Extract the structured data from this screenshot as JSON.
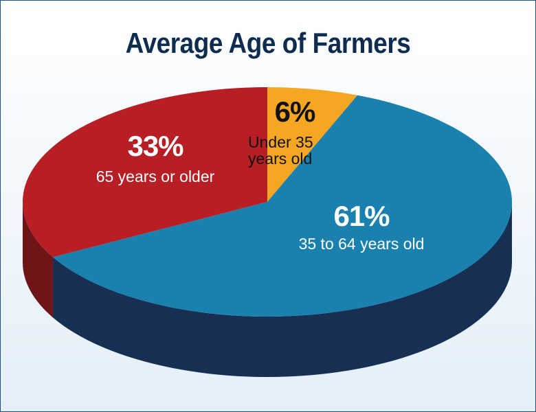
{
  "chart_data": {
    "type": "pie",
    "title": "Average Age of Farmers",
    "categories": [
      "Under 35 years old",
      "35 to 64 years old",
      "65 years or older"
    ],
    "values": [
      6,
      61,
      33
    ],
    "value_labels": [
      "6%",
      "61%",
      "33%"
    ],
    "colors": [
      "#f5a623",
      "#1a80ad",
      "#b81f25"
    ]
  }
}
